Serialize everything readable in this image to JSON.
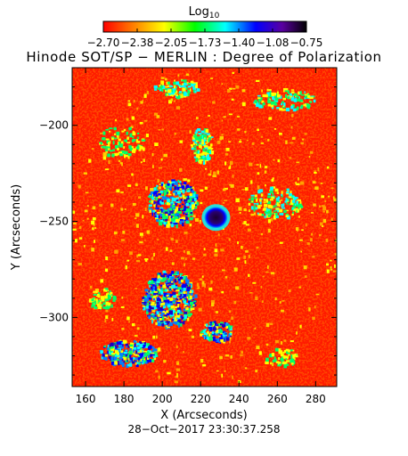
{
  "colorbar": {
    "label_base": "Log",
    "label_sub": "10",
    "ticks": [
      "−2.70",
      "−2.38",
      "−2.05",
      "−1.73",
      "−1.40",
      "−1.08",
      "−0.75"
    ],
    "range": [
      -2.7,
      -0.75
    ],
    "colors": [
      "#ff0000",
      "#ff7f00",
      "#ffff00",
      "#00ff00",
      "#00ffff",
      "#0000ff",
      "#4b0082",
      "#000000"
    ]
  },
  "chart_data": {
    "type": "heatmap",
    "title": "Hinode SOT/SP − MERLIN : Degree of Polarization",
    "xlabel": "X (Arcseconds)",
    "ylabel": "Y (Arcseconds)",
    "xlim": [
      153,
      291
    ],
    "ylim": [
      -336,
      -170
    ],
    "xticks": [
      160,
      180,
      200,
      220,
      240,
      260,
      280
    ],
    "yticks": [
      -200,
      -250,
      -300
    ],
    "ytick_labels": [
      "−200",
      "−250",
      "−300"
    ],
    "value_unit": "log10",
    "value_range": [
      -2.7,
      -0.75
    ],
    "background_value": -2.7,
    "features": [
      {
        "kind": "sunspot",
        "x": 228,
        "y": -248,
        "value": -0.75
      },
      {
        "kind": "plage",
        "x": 205,
        "y": -240,
        "value": -1.3
      },
      {
        "kind": "plage",
        "x": 203,
        "y": -290,
        "value": -1.2
      },
      {
        "kind": "plage",
        "x": 180,
        "y": -318,
        "value": -1.5
      }
    ]
  },
  "timestamp": "28−Oct−2017 23:30:37.258"
}
